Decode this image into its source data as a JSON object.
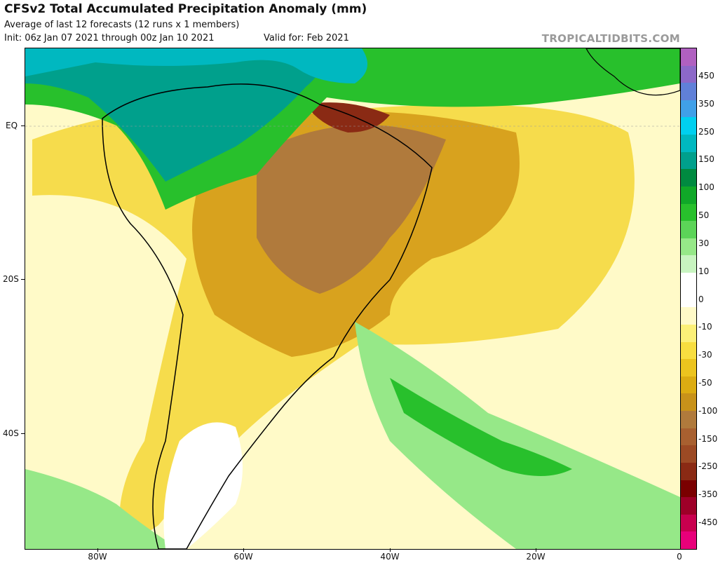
{
  "title": "CFSv2 Total Accumulated Precipitation Anomaly (mm)",
  "subtitle_line1": "Average of last 12 forecasts (12 runs x 1 members)",
  "subtitle_line2": "Init: 06z Jan 07 2021 through 00z Jan 10 2021",
  "valid_for": "Valid for: Feb 2021",
  "brand": "TROPICALTIDBITS.COM",
  "axes": {
    "lat_labels": [
      "EQ",
      "20S",
      "40S"
    ],
    "lon_labels": [
      "80W",
      "60W",
      "40W",
      "20W",
      "0"
    ]
  },
  "colorbar": {
    "colors": [
      "#e8007a",
      "#c8004e",
      "#9e0028",
      "#7a0000",
      "#8a2a14",
      "#9c4a24",
      "#a86030",
      "#b07a3c",
      "#c8921a",
      "#dcac12",
      "#ecc41e",
      "#f8de40",
      "#fcf078",
      "#fffac8",
      "#ffffff",
      "#ffffff",
      "#c8f4c0",
      "#96e888",
      "#5cd458",
      "#28c02c",
      "#10a828",
      "#008a40",
      "#00a08c",
      "#00b8c0",
      "#00d0f0",
      "#40a0e8",
      "#6080d8",
      "#8c68c8",
      "#b060c0"
    ],
    "labels": [
      "-450",
      "-350",
      "-250",
      "-150",
      "-100",
      "-50",
      "-30",
      "-10",
      "0",
      "10",
      "30",
      "50",
      "100",
      "150",
      "250",
      "350",
      "450"
    ]
  }
}
